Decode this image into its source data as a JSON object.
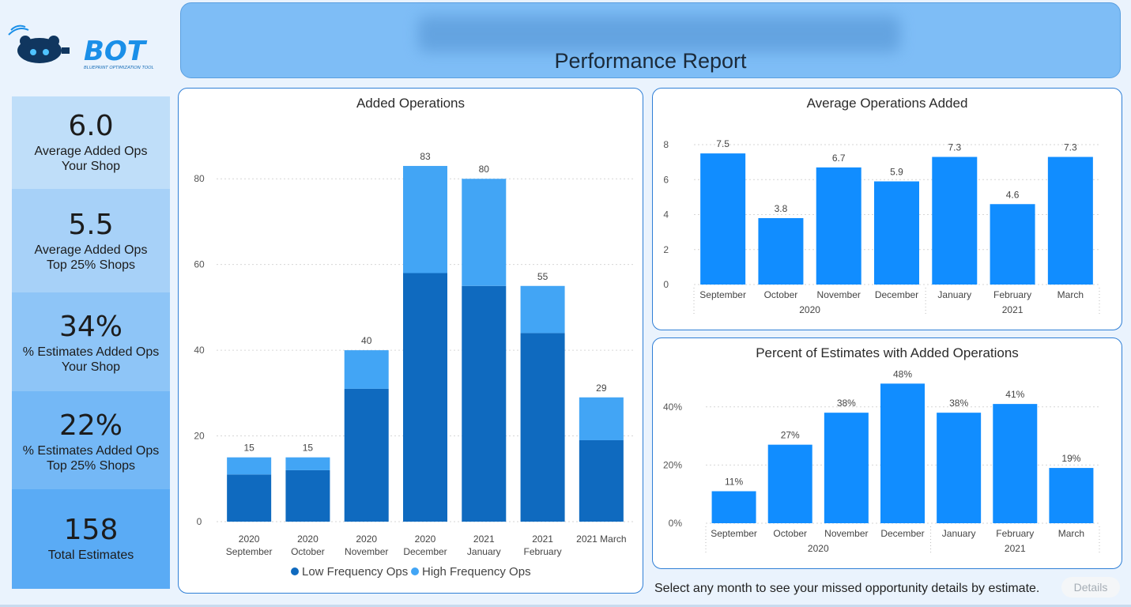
{
  "header": {
    "title": "Performance Report"
  },
  "logo": {
    "text": "BOT",
    "tagline": "BLUEPRINT OPTIMIZATION TOOL"
  },
  "kpis": [
    {
      "value": "6.0",
      "label_line1": "Average Added Ops",
      "label_line2": "Your Shop",
      "color": "#bfdef9"
    },
    {
      "value": "5.5",
      "label_line1": "Average Added Ops",
      "label_line2": "Top 25% Shops",
      "color": "#a7d1f8"
    },
    {
      "value": "34%",
      "label_line1": "% Estimates Added Ops",
      "label_line2": "Your Shop",
      "color": "#8ec5f7"
    },
    {
      "value": "22%",
      "label_line1": "% Estimates Added Ops",
      "label_line2": "Top 25% Shops",
      "color": "#74b8f6"
    },
    {
      "value": "158",
      "label_line1": "Total Estimates",
      "label_line2": "",
      "color": "#5aabf5"
    }
  ],
  "footer": {
    "text": "Select any month to see your missed opportunity details by estimate.",
    "details_label": "Details"
  },
  "chart_data": [
    {
      "id": "added_ops",
      "type": "bar",
      "stacked": true,
      "title": "Added Operations",
      "categories": [
        [
          "2020",
          "September"
        ],
        [
          "2020",
          "October"
        ],
        [
          "2020",
          "November"
        ],
        [
          "2020",
          "December"
        ],
        [
          "2021",
          "January"
        ],
        [
          "2021",
          "February"
        ],
        [
          "2021 March"
        ]
      ],
      "series": [
        {
          "name": "Low Frequency Ops",
          "color": "#0f6abf",
          "values": [
            11,
            12,
            31,
            58,
            55,
            44,
            19
          ]
        },
        {
          "name": "High Frequency Ops",
          "color": "#42a5f5",
          "values": [
            4,
            3,
            9,
            25,
            25,
            11,
            10
          ]
        }
      ],
      "totals": [
        "15",
        "15",
        "40",
        "83",
        "80",
        "55",
        "29"
      ],
      "yticks": [
        "0",
        "20",
        "40",
        "60",
        "80"
      ],
      "ylim": [
        0,
        90
      ],
      "grid": true,
      "legend": "bottom"
    },
    {
      "id": "avg_ops",
      "type": "bar",
      "title": "Average Operations Added",
      "categories": [
        "September",
        "October",
        "November",
        "December",
        "January",
        "February",
        "March"
      ],
      "groups": [
        "2020",
        "2021"
      ],
      "values": [
        7.5,
        3.8,
        6.7,
        5.9,
        7.3,
        4.6,
        7.3
      ],
      "labels": [
        "7.5",
        "3.8",
        "6.7",
        "5.9",
        "7.3",
        "4.6",
        "7.3"
      ],
      "yticks": [
        "0",
        "2",
        "4",
        "6",
        "8"
      ],
      "ylim": [
        0,
        8.5
      ],
      "color": "#118dff",
      "grid": true
    },
    {
      "id": "pct_est",
      "type": "bar",
      "title": "Percent of Estimates with Added Operations",
      "categories": [
        "September",
        "October",
        "November",
        "December",
        "January",
        "February",
        "March"
      ],
      "groups": [
        "2020",
        "2021"
      ],
      "values": [
        11,
        27,
        38,
        48,
        38,
        41,
        19
      ],
      "labels": [
        "11%",
        "27%",
        "38%",
        "48%",
        "38%",
        "41%",
        "19%"
      ],
      "yticks": [
        "0%",
        "20%",
        "40%"
      ],
      "ylim": [
        0,
        50
      ],
      "color": "#118dff",
      "grid": true
    }
  ]
}
